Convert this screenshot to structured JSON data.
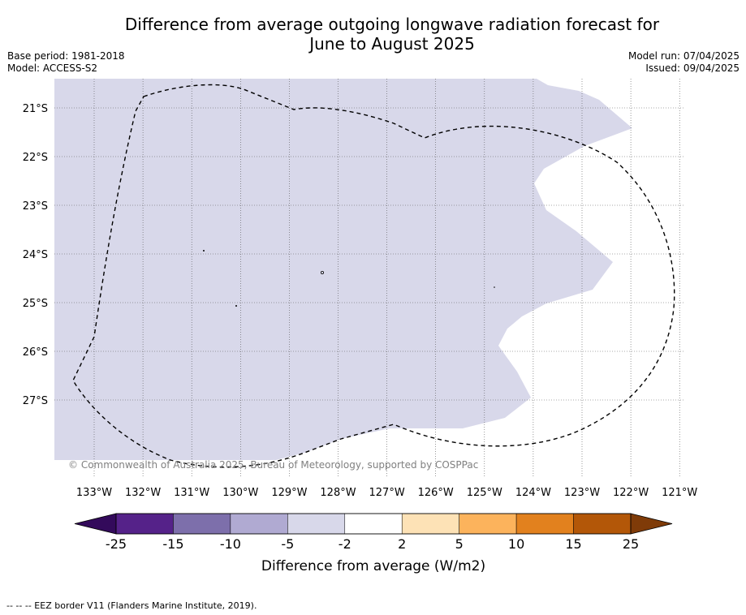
{
  "title_line1": "Difference from average outgoing longwave radiation forecast for",
  "title_line2": "June to August 2025",
  "meta_left": [
    "Base period: 1981-2018",
    "Model: ACCESS-S2"
  ],
  "meta_right": [
    "Model run: 07/04/2025",
    "Issued: 09/04/2025"
  ],
  "map": {
    "lon_labels": [
      "133°W",
      "132°W",
      "131°W",
      "130°W",
      "129°W",
      "128°W",
      "127°W",
      "126°W",
      "125°W",
      "124°W",
      "123°W",
      "122°W",
      "121°W"
    ],
    "lat_labels": [
      "21°S",
      "22°S",
      "23°S",
      "24°S",
      "25°S",
      "26°S",
      "27°S"
    ],
    "shaded_category": "-5 to -2",
    "shaded_color": "#d8d8ea",
    "copyright": "© Commonwealth of Australia 2025, Bureau of Meteorology, supported by COSPPac"
  },
  "colorbar": {
    "ticks": [
      "-25",
      "-15",
      "-10",
      "-5",
      "-2",
      "2",
      "5",
      "10",
      "15",
      "25"
    ],
    "colors": [
      "#552289",
      "#7d6fab",
      "#b0aad2",
      "#d8d8ea",
      "#ffffff",
      "#fde2b6",
      "#fcb35c",
      "#e2811e",
      "#b35708"
    ],
    "low_extend_color": "#330a5b",
    "high_extend_color": "#7f3b08",
    "label": "Difference from average (W/m2)"
  },
  "footnote": "-- -- -- EEZ border V11 (Flanders Marine Institute, 2019)."
}
